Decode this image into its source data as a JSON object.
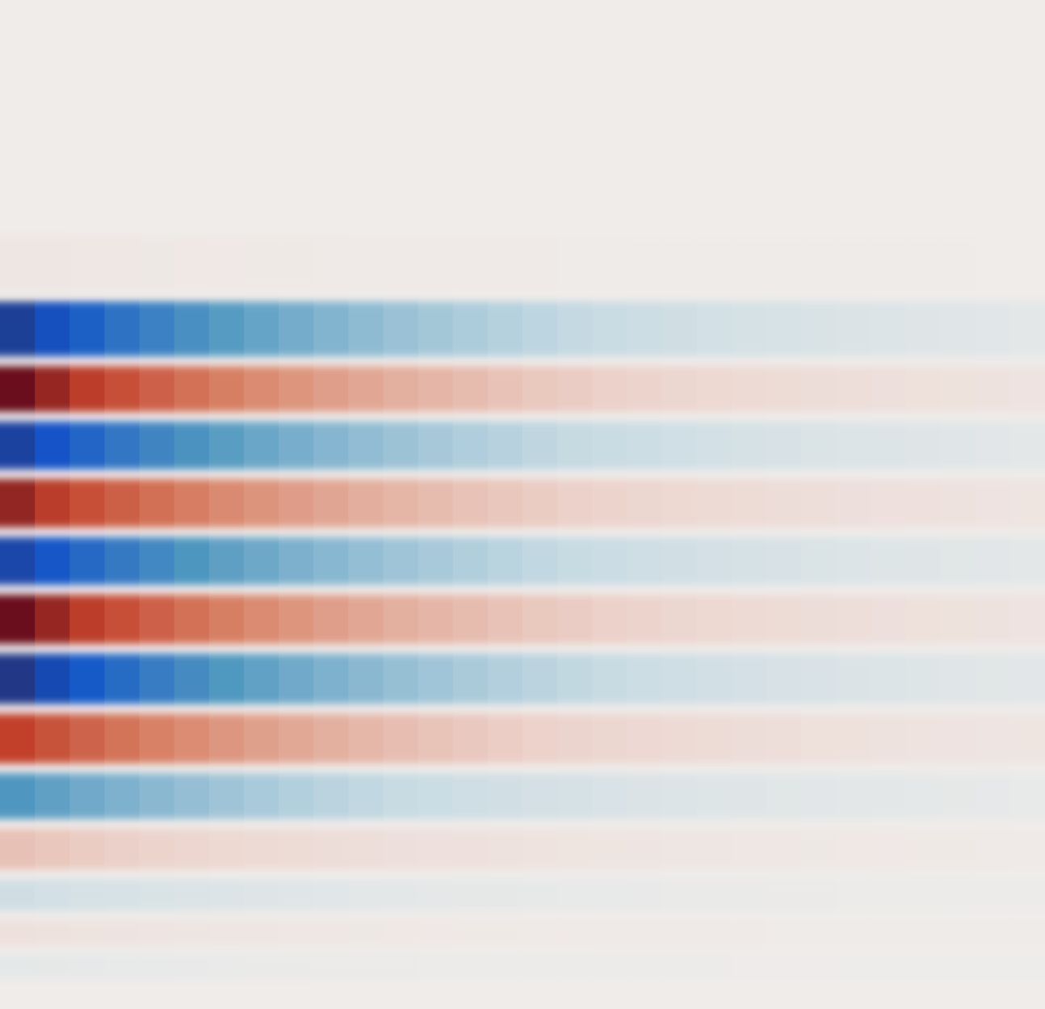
{
  "chart_data": {
    "type": "heatmap",
    "title": "",
    "xlabel": "",
    "ylabel": "",
    "colormap": "diverging-red-blue",
    "colors": {
      "negative_extreme": "#2a2f6e",
      "negative_strong": "#1253c8",
      "negative_mid": "#4f97c0",
      "negative_weak": "#c8dbe3",
      "neutral": "#efecea",
      "positive_weak": "#ecd3cc",
      "positive_mid": "#d9856a",
      "positive_strong": "#c2412a",
      "positive_extreme": "#6b0f1e"
    },
    "value_range": [
      -1,
      1
    ],
    "columns": 30,
    "decay_rate_per_column": 0.092,
    "column_value_gamma": 1.0,
    "rows": [
      {
        "index": 0,
        "peak": 0.0
      },
      {
        "index": 1,
        "peak": 0.0
      },
      {
        "index": 2,
        "peak": 0.0
      },
      {
        "index": 3,
        "peak": 0.0
      },
      {
        "index": 4,
        "peak": 0.05
      },
      {
        "index": 5,
        "peak": -0.92
      },
      {
        "index": 6,
        "peak": 1.0
      },
      {
        "index": 7,
        "peak": -0.9
      },
      {
        "index": 8,
        "peak": 0.92
      },
      {
        "index": 9,
        "peak": -0.88
      },
      {
        "index": 10,
        "peak": 1.0
      },
      {
        "index": 11,
        "peak": -0.95
      },
      {
        "index": 12,
        "peak": 0.82
      },
      {
        "index": 13,
        "peak": -0.55
      },
      {
        "index": 14,
        "peak": 0.28
      },
      {
        "index": 15,
        "peak": -0.16
      },
      {
        "index": 16,
        "peak": 0.09
      },
      {
        "index": 17,
        "peak": -0.05
      },
      {
        "index": 18,
        "peak": 0.0
      }
    ],
    "row_centers_fraction": [
      0.04,
      0.09,
      0.14,
      0.2,
      0.258,
      0.33,
      0.386,
      0.44,
      0.5,
      0.555,
      0.614,
      0.672,
      0.733,
      0.79,
      0.843,
      0.89,
      0.925,
      0.958,
      0.99
    ],
    "grid": false,
    "legend": "none"
  }
}
